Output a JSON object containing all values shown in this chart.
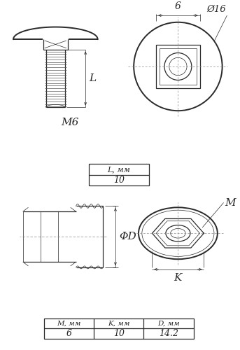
{
  "bg_color": "#ffffff",
  "line_color": "#2a2a2a",
  "thin_lw": 0.5,
  "medium_lw": 0.9,
  "thick_lw": 1.4,
  "table1_header": [
    "L, мм"
  ],
  "table1_values": [
    "10"
  ],
  "table2_header": [
    "M, мм",
    "K, мм",
    "D, мм"
  ],
  "table2_values": [
    "6",
    "10",
    "14.2"
  ],
  "label_L": "L",
  "label_M6": "M6",
  "label_phi16": "Ø16",
  "label_6_top": "6",
  "label_phiD": "ΦD",
  "label_M": "M",
  "label_K": "K"
}
